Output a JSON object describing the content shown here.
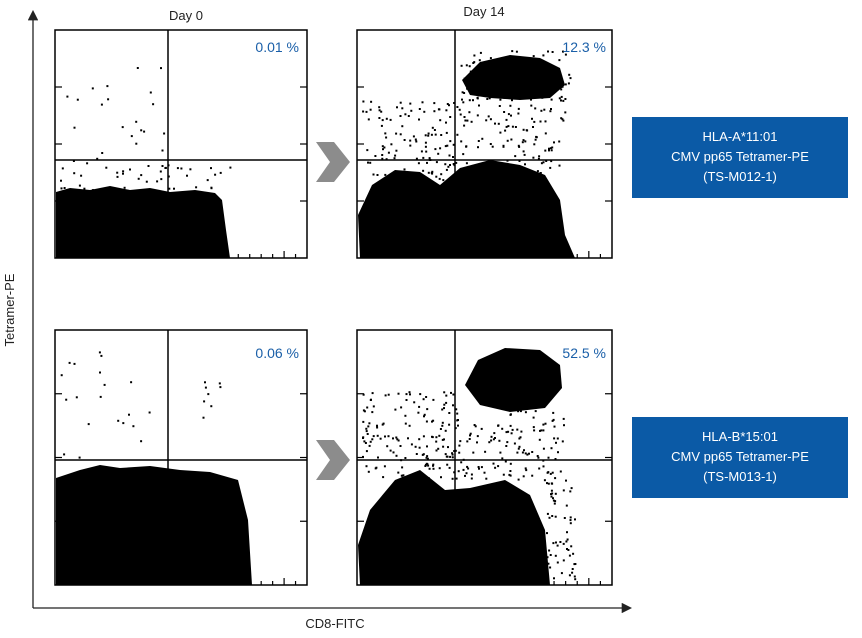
{
  "y_axis_label": "Tetramer-PE",
  "x_axis_label": "CD8-FITC",
  "columns": [
    "Day 0",
    "Day 14"
  ],
  "panels": [
    {
      "percent": "0.01 %"
    },
    {
      "percent": "12.3 %"
    },
    {
      "percent": "0.06 %"
    },
    {
      "percent": "52.5 %"
    }
  ],
  "labels": [
    {
      "lines": [
        "HLA-A*11:01",
        "CMV pp65 Tetramer-PE",
        "(TS-M012-1)"
      ]
    },
    {
      "lines": [
        "HLA-B*15:01",
        "CMV pp65 Tetramer-PE",
        "(TS-M013-1)"
      ]
    }
  ]
}
